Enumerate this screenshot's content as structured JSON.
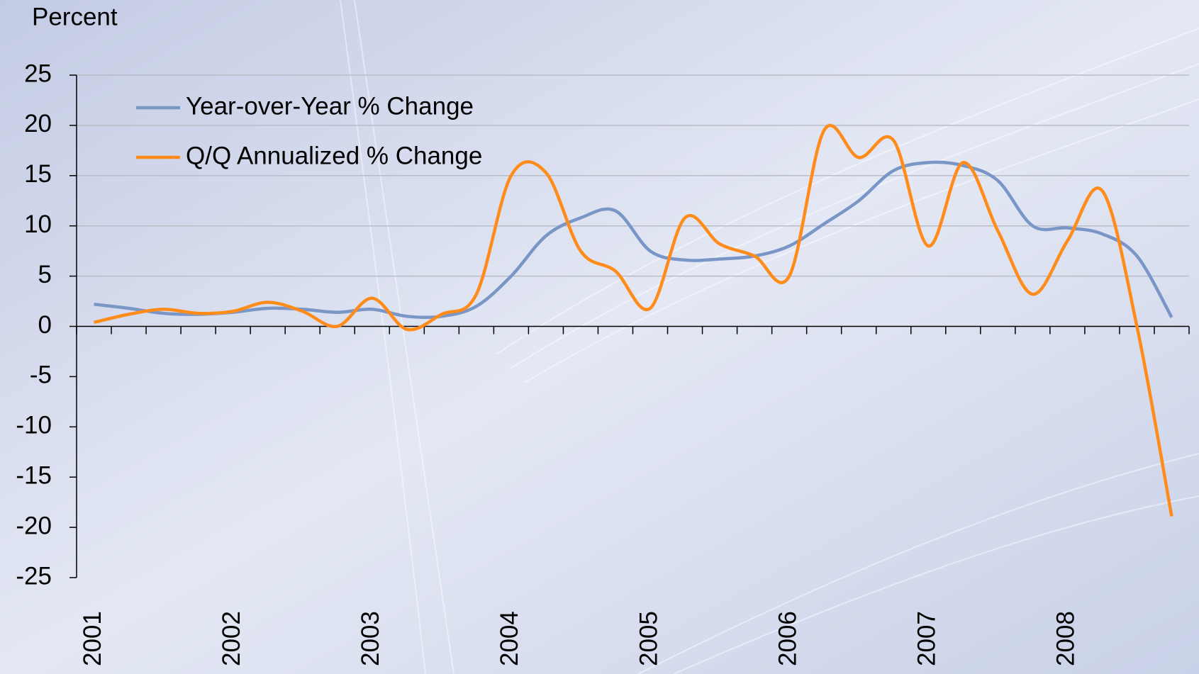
{
  "chart_data": {
    "type": "line",
    "y_label": "Percent",
    "categories": [
      "2001",
      null,
      null,
      null,
      "2002",
      null,
      null,
      null,
      "2003",
      null,
      null,
      null,
      "2004",
      null,
      null,
      null,
      "2005",
      null,
      null,
      null,
      "2006",
      null,
      null,
      null,
      "2007",
      null,
      null,
      null,
      "2008",
      null,
      null,
      null
    ],
    "series": [
      {
        "name": "Year-over-Year % Change",
        "color": "#7a96c6",
        "values": [
          2.2,
          1.8,
          1.3,
          1.2,
          1.4,
          1.8,
          1.7,
          1.4,
          1.7,
          1.0,
          1.0,
          2.0,
          5.0,
          9.0,
          10.8,
          11.5,
          7.5,
          6.6,
          6.7,
          7.0,
          8.0,
          10.2,
          12.5,
          15.5,
          16.3,
          16.0,
          14.5,
          10.0,
          9.8,
          9.2,
          7.0,
          0.9
        ]
      },
      {
        "name": "Q/Q Annualized % Change",
        "color": "#ff8c1a",
        "values": [
          0.4,
          1.2,
          1.7,
          1.3,
          1.5,
          2.4,
          1.5,
          0.0,
          2.8,
          -0.3,
          1.2,
          3.2,
          15.0,
          15.3,
          7.5,
          5.5,
          1.8,
          10.8,
          8.2,
          7.0,
          5.0,
          19.5,
          16.8,
          18.5,
          8.0,
          16.3,
          9.5,
          3.2,
          8.5,
          13.5,
          0.0,
          -18.9
        ]
      }
    ],
    "ylim": [
      -25,
      25
    ],
    "yticks": [
      -25,
      -20,
      -15,
      -10,
      -5,
      0,
      5,
      10,
      15,
      20,
      25
    ],
    "grid": true,
    "legend": "upper left"
  }
}
